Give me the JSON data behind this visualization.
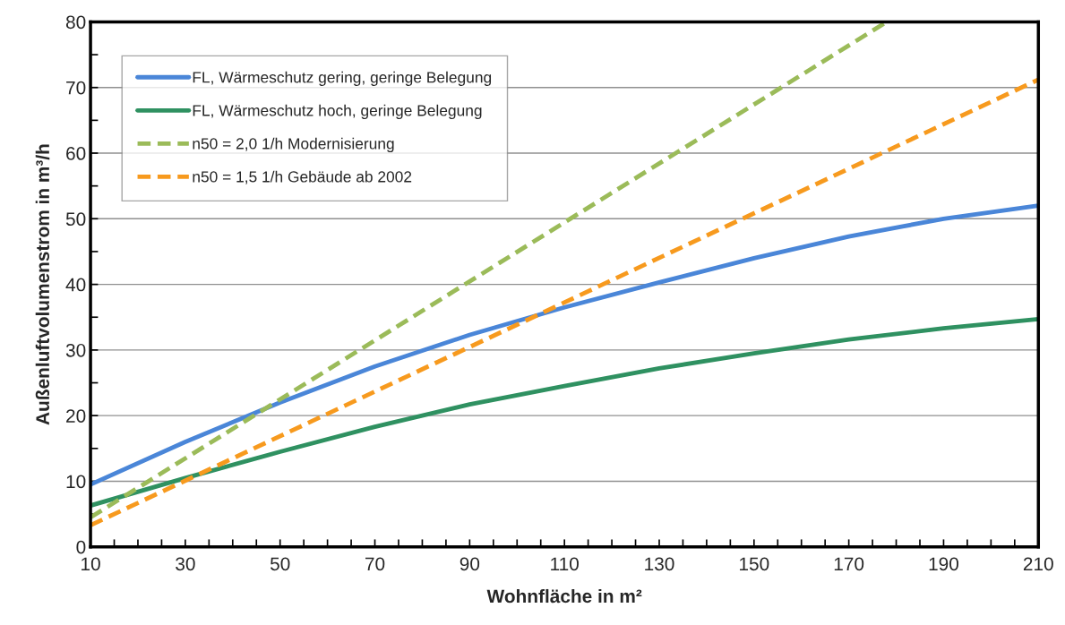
{
  "chart_data": {
    "type": "line",
    "xlabel": "Wohnfläche in m²",
    "ylabel": "Außenluftvolumenstrom in m³/h",
    "x": [
      10,
      30,
      50,
      70,
      90,
      110,
      130,
      150,
      170,
      190,
      210
    ],
    "series": [
      {
        "name": "FL, Wärmeschutz gering, geringe Belegung",
        "color": "#4a86d8",
        "line_style": "solid",
        "values": [
          9.5,
          16,
          22,
          27.5,
          32.3,
          36.5,
          40.3,
          44,
          47.3,
          50,
          52
        ]
      },
      {
        "name": "FL, Wärmeschutz hoch, geringe Belegung",
        "color": "#2f9161",
        "line_style": "solid",
        "values": [
          6.3,
          10.5,
          14.5,
          18.3,
          21.7,
          24.5,
          27.2,
          29.5,
          31.6,
          33.3,
          34.7
        ]
      },
      {
        "name": "n50 = 2,0 1/h Modernisierung",
        "color": "#9bbb59",
        "line_style": "dashed",
        "x": [
          10,
          178
        ],
        "values": [
          4.5,
          80
        ]
      },
      {
        "name": "n50 = 1,5 1/h Gebäude ab 2002",
        "color": "#f79a1e",
        "line_style": "dashed",
        "x": [
          10,
          210
        ],
        "values": [
          3.3,
          71.2
        ]
      }
    ],
    "xlim": [
      10,
      210
    ],
    "xticks": [
      10,
      {
        "value": 15,
        "label": null
      },
      {
        "value": 20,
        "label": null
      },
      {
        "value": 25,
        "label": null
      },
      30,
      {
        "value": 35,
        "label": null
      },
      {
        "value": 40,
        "label": null
      },
      {
        "value": 45,
        "label": null
      },
      50,
      {
        "value": 55,
        "label": null
      },
      {
        "value": 60,
        "label": null
      },
      {
        "value": 65,
        "label": null
      },
      70,
      {
        "value": 75,
        "label": null
      },
      {
        "value": 80,
        "label": null
      },
      {
        "value": 85,
        "label": null
      },
      90,
      {
        "value": 95,
        "label": null
      },
      {
        "value": 100,
        "label": null
      },
      {
        "value": 105,
        "label": null
      },
      110,
      {
        "value": 115,
        "label": null
      },
      {
        "value": 120,
        "label": null
      },
      {
        "value": 125,
        "label": null
      },
      130,
      {
        "value": 135,
        "label": null
      },
      {
        "value": 140,
        "label": null
      },
      {
        "value": 145,
        "label": null
      },
      150,
      {
        "value": 155,
        "label": null
      },
      {
        "value": 160,
        "label": null
      },
      {
        "value": 165,
        "label": null
      },
      170,
      {
        "value": 175,
        "label": null
      },
      {
        "value": 180,
        "label": null
      },
      {
        "value": 185,
        "label": null
      },
      190,
      {
        "value": 195,
        "label": null
      },
      {
        "value": 200,
        "label": null
      },
      {
        "value": 205,
        "label": null
      },
      210
    ],
    "ylim": [
      0,
      80
    ],
    "yticks": [
      0,
      {
        "value": 5,
        "label": null
      },
      10,
      {
        "value": 15,
        "label": null
      },
      20,
      {
        "value": 25,
        "label": null
      },
      30,
      {
        "value": 35,
        "label": null
      },
      40,
      {
        "value": 45,
        "label": null
      },
      50,
      {
        "value": 55,
        "label": null
      },
      60,
      {
        "value": 65,
        "label": null
      },
      70,
      {
        "value": 75,
        "label": null
      },
      80
    ],
    "grid": "y",
    "legend": "top left"
  }
}
